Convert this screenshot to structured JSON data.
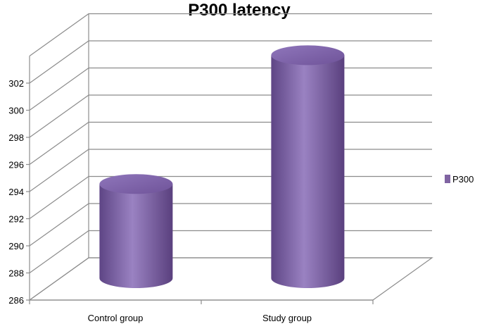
{
  "chart_data": {
    "type": "bar",
    "title": "P300 latency",
    "categories": [
      "Control group",
      "Study group"
    ],
    "series": [
      {
        "name": "P300",
        "values": [
          293,
          302.5
        ],
        "color": "#8064A2"
      }
    ],
    "ylim": [
      286,
      302
    ],
    "yticks": [
      286,
      288,
      290,
      292,
      294,
      296,
      298,
      300,
      302
    ],
    "xlabel": "",
    "ylabel": "",
    "grid": true,
    "legend_position": "right",
    "style": "3d-cylinder"
  }
}
